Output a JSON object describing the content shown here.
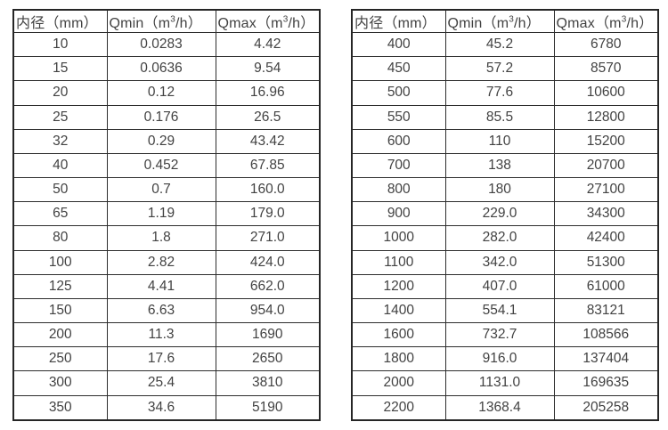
{
  "colors": {
    "background": "#ffffff",
    "border": "#2d2d2d",
    "text": "#424242"
  },
  "tables": [
    {
      "name": "flow-rate-table-small-diameters",
      "columns": [
        {
          "label": "内径（mm）"
        },
        {
          "prefix": "Qmin（m",
          "sup": "3",
          "suffix": "/h）"
        },
        {
          "prefix": "Qmax（m",
          "sup": "3",
          "suffix": "/h）"
        }
      ],
      "rows": [
        [
          "10",
          "0.0283",
          "4.42"
        ],
        [
          "15",
          "0.0636",
          "9.54"
        ],
        [
          "20",
          "0.12",
          "16.96"
        ],
        [
          "25",
          "0.176",
          "26.5"
        ],
        [
          "32",
          "0.29",
          "43.42"
        ],
        [
          "40",
          "0.452",
          "67.85"
        ],
        [
          "50",
          "0.7",
          "160.0"
        ],
        [
          "65",
          "1.19",
          "179.0"
        ],
        [
          "80",
          "1.8",
          "271.0"
        ],
        [
          "100",
          "2.82",
          "424.0"
        ],
        [
          "125",
          "4.41",
          "662.0"
        ],
        [
          "150",
          "6.63",
          "954.0"
        ],
        [
          "200",
          "11.3",
          "1690"
        ],
        [
          "250",
          "17.6",
          "2650"
        ],
        [
          "300",
          "25.4",
          "3810"
        ],
        [
          "350",
          "34.6",
          "5190"
        ]
      ]
    },
    {
      "name": "flow-rate-table-large-diameters",
      "columns": [
        {
          "label": "内径（mm）"
        },
        {
          "prefix": "Qmin（m",
          "sup": "3",
          "suffix": "/h）"
        },
        {
          "prefix": "Qmax（m",
          "sup": "3",
          "suffix": "/h）"
        }
      ],
      "rows": [
        [
          "400",
          "45.2",
          "6780"
        ],
        [
          "450",
          "57.2",
          "8570"
        ],
        [
          "500",
          "77.6",
          "10600"
        ],
        [
          "550",
          "85.5",
          "12800"
        ],
        [
          "600",
          "110",
          "15200"
        ],
        [
          "700",
          "138",
          "20700"
        ],
        [
          "800",
          "180",
          "27100"
        ],
        [
          "900",
          "229.0",
          "34300"
        ],
        [
          "1000",
          "282.0",
          "42400"
        ],
        [
          "1100",
          "342.0",
          "51300"
        ],
        [
          "1200",
          "407.0",
          "61000"
        ],
        [
          "1400",
          "554.1",
          "83121"
        ],
        [
          "1600",
          "732.7",
          "108566"
        ],
        [
          "1800",
          "916.0",
          "137404"
        ],
        [
          "2000",
          "1131.0",
          "169635"
        ],
        [
          "2200",
          "1368.4",
          "205258"
        ]
      ]
    }
  ]
}
